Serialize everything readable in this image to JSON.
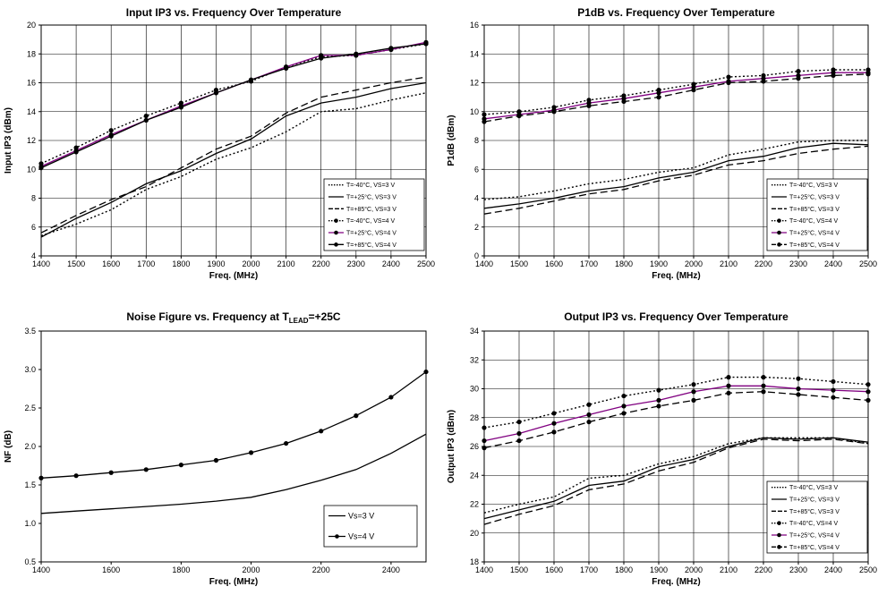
{
  "chart_data": [
    {
      "type": "line",
      "title": "Input IP3 vs. Frequency Over Temperature",
      "xlabel": "Freq. (MHz)",
      "ylabel": "Input IP3 (dBm)",
      "xlim": [
        1400,
        2500
      ],
      "ylim": [
        4,
        20
      ],
      "xticks": [
        1400,
        1500,
        1600,
        1700,
        1800,
        1900,
        2000,
        2100,
        2200,
        2300,
        2400,
        2500
      ],
      "yticks": [
        4,
        6,
        8,
        10,
        12,
        14,
        16,
        18,
        20
      ],
      "grid": true,
      "legend_position": "bottom-right",
      "x": [
        1400,
        1500,
        1600,
        1700,
        1800,
        1900,
        2000,
        2100,
        2200,
        2300,
        2400,
        2500
      ],
      "series": [
        {
          "name": "T=-40°C, VS=3 V",
          "style": "dotted",
          "color": "#000000",
          "marker": false,
          "values": [
            5.4,
            6.2,
            7.2,
            8.6,
            9.5,
            10.7,
            11.5,
            12.6,
            14.0,
            14.2,
            14.8,
            15.3
          ]
        },
        {
          "name": "T=+25°C, VS=3 V",
          "style": "solid",
          "color": "#000000",
          "marker": false,
          "values": [
            5.3,
            6.6,
            7.7,
            9.0,
            9.9,
            11.1,
            12.1,
            13.7,
            14.6,
            15.0,
            15.6,
            16.0
          ]
        },
        {
          "name": "T=+85°C, VS=3 V",
          "style": "dashed",
          "color": "#000000",
          "marker": false,
          "values": [
            5.6,
            6.8,
            7.9,
            8.8,
            10.1,
            11.4,
            12.3,
            13.9,
            15.0,
            15.5,
            16.0,
            16.4
          ]
        },
        {
          "name": "T=-40°C, VS=4 V",
          "style": "dotted",
          "color": "#000000",
          "marker": true,
          "values": [
            10.4,
            11.5,
            12.7,
            13.7,
            14.6,
            15.5,
            16.1,
            17.1,
            17.8,
            17.9,
            18.3,
            18.7
          ]
        },
        {
          "name": "T=+25°C, VS=4 V",
          "style": "solid",
          "color": "#800080",
          "marker": true,
          "values": [
            10.2,
            11.3,
            12.4,
            13.4,
            14.4,
            15.3,
            16.2,
            17.1,
            17.9,
            17.9,
            18.3,
            18.8
          ]
        },
        {
          "name": "T=+85°C, VS=4 V",
          "style": "solid",
          "color": "#000000",
          "marker": true,
          "values": [
            10.1,
            11.2,
            12.3,
            13.4,
            14.3,
            15.3,
            16.2,
            17.0,
            17.7,
            18.0,
            18.4,
            18.7
          ]
        }
      ]
    },
    {
      "type": "line",
      "title": "P1dB vs. Frequency Over Temperature",
      "xlabel": "Freq. (MHz)",
      "ylabel": "P1dB (dBm)",
      "xlim": [
        1400,
        2500
      ],
      "ylim": [
        0,
        16
      ],
      "xticks": [
        1400,
        1500,
        1600,
        1700,
        1800,
        1900,
        2000,
        2100,
        2200,
        2300,
        2400,
        2500
      ],
      "yticks": [
        0,
        2,
        4,
        6,
        8,
        10,
        12,
        14,
        16
      ],
      "grid": true,
      "legend_position": "bottom-right",
      "x": [
        1400,
        1500,
        1600,
        1700,
        1800,
        1900,
        2000,
        2100,
        2200,
        2300,
        2400,
        2500
      ],
      "series": [
        {
          "name": "T=-40°C, VS=3 V",
          "style": "dotted",
          "color": "#000000",
          "marker": false,
          "values": [
            3.9,
            4.1,
            4.5,
            5.0,
            5.3,
            5.8,
            6.1,
            7.0,
            7.4,
            7.9,
            8.0,
            8.0
          ]
        },
        {
          "name": "T=+25°C, VS=3 V",
          "style": "solid",
          "color": "#000000",
          "marker": false,
          "values": [
            3.3,
            3.6,
            4.0,
            4.5,
            4.8,
            5.4,
            5.8,
            6.6,
            6.9,
            7.5,
            7.8,
            7.7
          ]
        },
        {
          "name": "T=+85°C, VS=3 V",
          "style": "dashed",
          "color": "#000000",
          "marker": false,
          "values": [
            2.9,
            3.3,
            3.8,
            4.3,
            4.6,
            5.2,
            5.6,
            6.3,
            6.6,
            7.1,
            7.4,
            7.6
          ]
        },
        {
          "name": "T=-40°C, VS=4 V",
          "style": "dotted",
          "color": "#000000",
          "marker": true,
          "values": [
            9.8,
            10.0,
            10.3,
            10.8,
            11.1,
            11.5,
            11.9,
            12.4,
            12.5,
            12.8,
            12.9,
            12.9
          ]
        },
        {
          "name": "T=+25°C, VS=4 V",
          "style": "solid",
          "color": "#800080",
          "marker": true,
          "values": [
            9.5,
            9.8,
            10.1,
            10.6,
            10.9,
            11.3,
            11.7,
            12.1,
            12.3,
            12.5,
            12.7,
            12.7
          ]
        },
        {
          "name": "T=+85°C, VS=4 V",
          "style": "dashed",
          "color": "#000000",
          "marker": true,
          "values": [
            9.3,
            9.7,
            10.0,
            10.4,
            10.7,
            11.0,
            11.5,
            12.0,
            12.1,
            12.3,
            12.5,
            12.6
          ]
        }
      ]
    },
    {
      "type": "line",
      "title": "Noise Figure vs. Frequency at T",
      "title_subscript": "LEAD",
      "title_suffix": "=+25C",
      "xlabel": "Freq. (MHz)",
      "ylabel": "NF (dB)",
      "xlim": [
        1400,
        2500
      ],
      "ylim": [
        0.5,
        3.5
      ],
      "xticks": [
        1400,
        1600,
        1800,
        2000,
        2200,
        2400
      ],
      "yticks": [
        0.5,
        1.0,
        1.5,
        2.0,
        2.5,
        3.0,
        3.5
      ],
      "ytick_labels": [
        "0.5",
        "1.0",
        "1.5",
        "2.0",
        "2.5",
        "3.0",
        "3.5"
      ],
      "grid": false,
      "legend_position": "bottom-right",
      "x": [
        1400,
        1500,
        1600,
        1700,
        1800,
        1900,
        2000,
        2100,
        2200,
        2300,
        2400,
        2500
      ],
      "series": [
        {
          "name": "Vs=3 V",
          "style": "solid",
          "color": "#000000",
          "marker": false,
          "values": [
            1.13,
            1.16,
            1.19,
            1.22,
            1.25,
            1.29,
            1.34,
            1.44,
            1.56,
            1.7,
            1.91,
            2.16
          ]
        },
        {
          "name": "Vs=4 V",
          "style": "solid",
          "color": "#000000",
          "marker": true,
          "values": [
            1.59,
            1.62,
            1.66,
            1.7,
            1.76,
            1.82,
            1.92,
            2.04,
            2.2,
            2.4,
            2.64,
            2.97
          ]
        }
      ]
    },
    {
      "type": "line",
      "title": "Output IP3 vs. Frequency Over Temperature",
      "xlabel": "Freq. (MHz)",
      "ylabel": "Output IP3 (dBm)",
      "xlim": [
        1400,
        2500
      ],
      "ylim": [
        18,
        34
      ],
      "xticks": [
        1400,
        1500,
        1600,
        1700,
        1800,
        1900,
        2000,
        2100,
        2200,
        2300,
        2400,
        2500
      ],
      "yticks": [
        18,
        20,
        22,
        24,
        26,
        28,
        30,
        32,
        34
      ],
      "grid": true,
      "legend_position": "bottom-right",
      "x": [
        1400,
        1500,
        1600,
        1700,
        1800,
        1900,
        2000,
        2100,
        2200,
        2300,
        2400,
        2500
      ],
      "series": [
        {
          "name": "T=-40°C, VS=3 V",
          "style": "dotted",
          "color": "#000000",
          "marker": false,
          "values": [
            21.4,
            22.0,
            22.5,
            23.8,
            24.0,
            24.8,
            25.3,
            26.2,
            26.6,
            26.6,
            26.6,
            26.2
          ]
        },
        {
          "name": "T=+25°C, VS=3 V",
          "style": "solid",
          "color": "#000000",
          "marker": false,
          "values": [
            21.0,
            21.6,
            22.2,
            23.3,
            23.6,
            24.6,
            25.1,
            26.0,
            26.6,
            26.5,
            26.6,
            26.3
          ]
        },
        {
          "name": "T=+85°C, VS=3 V",
          "style": "dashed",
          "color": "#000000",
          "marker": false,
          "values": [
            20.6,
            21.3,
            21.9,
            23.0,
            23.4,
            24.3,
            24.9,
            25.9,
            26.5,
            26.4,
            26.5,
            26.2
          ]
        },
        {
          "name": "T=-40°C, VS=4 V",
          "style": "dotted",
          "color": "#000000",
          "marker": true,
          "values": [
            27.3,
            27.7,
            28.3,
            28.9,
            29.5,
            29.9,
            30.3,
            30.8,
            30.8,
            30.7,
            30.5,
            30.3
          ]
        },
        {
          "name": "T=+25°C, VS=4 V",
          "style": "solid",
          "color": "#800080",
          "marker": true,
          "values": [
            26.4,
            26.9,
            27.6,
            28.2,
            28.8,
            29.2,
            29.8,
            30.2,
            30.2,
            30.0,
            29.9,
            29.8
          ]
        },
        {
          "name": "T=+85°C, VS=4 V",
          "style": "dashed",
          "color": "#000000",
          "marker": true,
          "values": [
            25.9,
            26.4,
            27.0,
            27.7,
            28.3,
            28.8,
            29.2,
            29.7,
            29.8,
            29.6,
            29.4,
            29.2
          ]
        }
      ]
    }
  ]
}
